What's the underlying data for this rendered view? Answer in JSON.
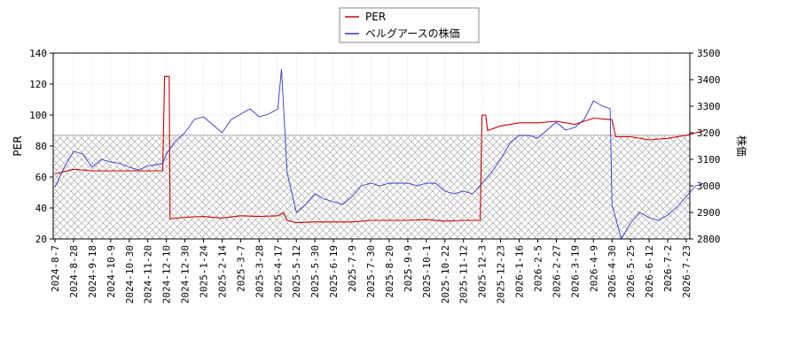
{
  "chart_data": {
    "type": "line",
    "legend": {
      "placement": "top-center",
      "entries": [
        {
          "label": "PER",
          "color": "#cc0000"
        },
        {
          "label": "ベルグアースの株価",
          "color": "#3333cc"
        }
      ]
    },
    "y_left": {
      "label": "PER",
      "min": 20,
      "max": 140,
      "ticks": [
        20,
        40,
        60,
        80,
        100,
        120,
        140
      ]
    },
    "y_right": {
      "label": "株価",
      "min": 2800,
      "max": 3500,
      "ticks": [
        2800,
        2900,
        3000,
        3100,
        3200,
        3300,
        3400,
        3500
      ]
    },
    "x_ticks": [
      "2024-8-7",
      "2024-8-28",
      "2024-9-18",
      "2024-10-9",
      "2024-10-30",
      "2024-11-20",
      "2024-12-10",
      "2024-12-30",
      "2025-1-24",
      "2025-2-14",
      "2025-3-7",
      "2025-3-28",
      "2025-4-17",
      "2025-5-12",
      "2025-5-30",
      "2025-6-19",
      "2025-7-9",
      "2025-7-30",
      "2025-8-20",
      "2025-9-9",
      "2025-10-1",
      "2025-10-22",
      "2025-11-12",
      "2025-12-3",
      "2025-12-23",
      "2026-1-16",
      "2026-2-5",
      "2026-2-27",
      "2026-3-19",
      "2026-4-9",
      "2026-4-30",
      "2026-5-25",
      "2026-6-12",
      "2026-7-2",
      "2026-7-23"
    ],
    "grid": true,
    "hatched_band": {
      "y_min": 20,
      "y_max": 87
    },
    "series": [
      {
        "name": "PER",
        "axis": "left",
        "color": "#cc0000",
        "points": [
          [
            0,
            62
          ],
          [
            1,
            65
          ],
          [
            2,
            64
          ],
          [
            3,
            64
          ],
          [
            4,
            64
          ],
          [
            5,
            64
          ],
          [
            5.8,
            64
          ],
          [
            5.9,
            125
          ],
          [
            6.15,
            125
          ],
          [
            6.2,
            33
          ],
          [
            7,
            34
          ],
          [
            8,
            34.5
          ],
          [
            9,
            33.5
          ],
          [
            10,
            35
          ],
          [
            11,
            34.5
          ],
          [
            12,
            35
          ],
          [
            12.3,
            37
          ],
          [
            12.5,
            32
          ],
          [
            13,
            30.5
          ],
          [
            14,
            31
          ],
          [
            15,
            31
          ],
          [
            16,
            31
          ],
          [
            17,
            32
          ],
          [
            18,
            32
          ],
          [
            19,
            32
          ],
          [
            20,
            32.5
          ],
          [
            21,
            31.5
          ],
          [
            22,
            32
          ],
          [
            22.9,
            32
          ],
          [
            23.0,
            100
          ],
          [
            23.2,
            100
          ],
          [
            23.3,
            90
          ],
          [
            24,
            93
          ],
          [
            25,
            95
          ],
          [
            26,
            95
          ],
          [
            27,
            96
          ],
          [
            28,
            94
          ],
          [
            29,
            98
          ],
          [
            30,
            97
          ],
          [
            30.2,
            86
          ],
          [
            31,
            86
          ],
          [
            32,
            84
          ],
          [
            33,
            85
          ],
          [
            34,
            87
          ],
          [
            35,
            90
          ]
        ]
      },
      {
        "name": "ベルグアースの株価",
        "axis": "right",
        "color": "#3333cc",
        "points": [
          [
            0,
            2995
          ],
          [
            0.5,
            3070
          ],
          [
            1,
            3130
          ],
          [
            1.5,
            3120
          ],
          [
            2,
            3070
          ],
          [
            2.5,
            3100
          ],
          [
            3,
            3090
          ],
          [
            3.5,
            3085
          ],
          [
            4,
            3070
          ],
          [
            4.5,
            3060
          ],
          [
            5,
            3075
          ],
          [
            5.5,
            3080
          ],
          [
            5.8,
            3085
          ],
          [
            6,
            3120
          ],
          [
            6.5,
            3170
          ],
          [
            7,
            3200
          ],
          [
            7.5,
            3250
          ],
          [
            8,
            3260
          ],
          [
            8.5,
            3230
          ],
          [
            9,
            3200
          ],
          [
            9.5,
            3250
          ],
          [
            10,
            3270
          ],
          [
            10.5,
            3290
          ],
          [
            11,
            3260
          ],
          [
            11.5,
            3270
          ],
          [
            12,
            3290
          ],
          [
            12.2,
            3440
          ],
          [
            12.5,
            3050
          ],
          [
            13,
            2900
          ],
          [
            13.5,
            2930
          ],
          [
            14,
            2970
          ],
          [
            14.5,
            2950
          ],
          [
            15,
            2940
          ],
          [
            15.5,
            2930
          ],
          [
            16,
            2960
          ],
          [
            16.5,
            3000
          ],
          [
            17,
            3010
          ],
          [
            17.5,
            3000
          ],
          [
            18,
            3010
          ],
          [
            18.5,
            3010
          ],
          [
            19,
            3010
          ],
          [
            19.5,
            3000
          ],
          [
            20,
            3010
          ],
          [
            20.5,
            3010
          ],
          [
            21,
            2980
          ],
          [
            21.5,
            2970
          ],
          [
            22,
            2980
          ],
          [
            22.5,
            2970
          ],
          [
            23,
            3010
          ],
          [
            23.5,
            3050
          ],
          [
            24,
            3100
          ],
          [
            24.5,
            3160
          ],
          [
            25,
            3190
          ],
          [
            25.5,
            3190
          ],
          [
            26,
            3180
          ],
          [
            26.5,
            3210
          ],
          [
            27,
            3240
          ],
          [
            27.5,
            3210
          ],
          [
            28,
            3220
          ],
          [
            28.5,
            3250
          ],
          [
            29,
            3320
          ],
          [
            29.5,
            3300
          ],
          [
            29.9,
            3290
          ],
          [
            30,
            2930
          ],
          [
            30.5,
            2800
          ],
          [
            31,
            2860
          ],
          [
            31.5,
            2900
          ],
          [
            32,
            2880
          ],
          [
            32.5,
            2870
          ],
          [
            33,
            2890
          ],
          [
            33.5,
            2920
          ],
          [
            34,
            2960
          ],
          [
            34.5,
            3000
          ],
          [
            35,
            3010
          ]
        ]
      }
    ]
  }
}
